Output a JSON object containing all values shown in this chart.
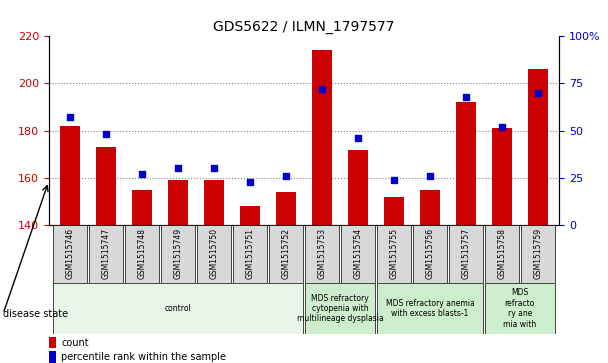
{
  "title": "GDS5622 / ILMN_1797577",
  "samples": [
    "GSM1515746",
    "GSM1515747",
    "GSM1515748",
    "GSM1515749",
    "GSM1515750",
    "GSM1515751",
    "GSM1515752",
    "GSM1515753",
    "GSM1515754",
    "GSM1515755",
    "GSM1515756",
    "GSM1515757",
    "GSM1515758",
    "GSM1515759"
  ],
  "counts": [
    182,
    173,
    155,
    159,
    159,
    148,
    154,
    214,
    172,
    152,
    155,
    192,
    181,
    206
  ],
  "percentiles": [
    57,
    48,
    27,
    30,
    30,
    23,
    26,
    72,
    46,
    24,
    26,
    68,
    52,
    70
  ],
  "bar_color": "#cc0000",
  "dot_color": "#0000cc",
  "ylim_left": [
    140,
    220
  ],
  "ylim_right": [
    0,
    100
  ],
  "yticks_left": [
    140,
    160,
    180,
    200,
    220
  ],
  "yticks_right": [
    0,
    25,
    50,
    75,
    100
  ],
  "ytick_labels_right": [
    "0",
    "25",
    "50",
    "75",
    "100%"
  ],
  "grid_values": [
    160,
    180,
    200
  ],
  "disease_groups": [
    {
      "label": "control",
      "start": 0,
      "end": 7,
      "color": "#e8f5e8"
    },
    {
      "label": "MDS refractory\ncytopenia with\nmultilineage dysplasia",
      "start": 7,
      "end": 9,
      "color": "#cceecc"
    },
    {
      "label": "MDS refractory anemia\nwith excess blasts-1",
      "start": 9,
      "end": 12,
      "color": "#cceecc"
    },
    {
      "label": "MDS\nrefracto\nry ane\nmia with",
      "start": 12,
      "end": 14,
      "color": "#cceecc"
    }
  ],
  "legend_count_label": "count",
  "legend_percentile_label": "percentile rank within the sample",
  "disease_state_label": "disease state",
  "background_color": "#ffffff",
  "tick_bg_color": "#d8d8d8"
}
